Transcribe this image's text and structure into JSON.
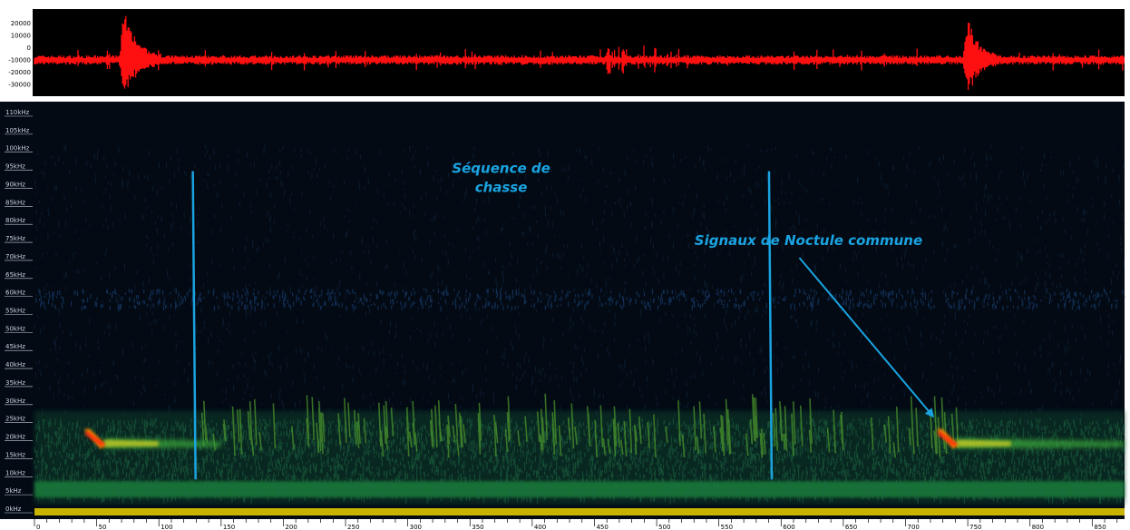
{
  "chart_data": [
    {
      "type": "line",
      "panel": "waveform",
      "yticks": [
        "20000",
        "10000",
        "0",
        "-10000",
        "-20000",
        "-30000"
      ],
      "ytick_values": [
        20000,
        10000,
        0,
        -10000,
        -20000,
        -30000
      ],
      "ylim": [
        -38000,
        30000
      ],
      "baseline": -10000,
      "xlim": [
        0,
        876
      ],
      "bursts": [
        {
          "x": 72,
          "amp_max": 28000,
          "amp_min": -36000,
          "decay": 30
        },
        {
          "x": 750,
          "amp_max": 22000,
          "amp_min": -36000,
          "decay": 25
        }
      ],
      "colors": {
        "signal": "#ff1010",
        "background": "#000000"
      }
    },
    {
      "type": "heatmap",
      "panel": "spectrogram",
      "yticks": [
        "110kHz",
        "105kHz",
        "100kHz",
        "95kHz",
        "90kHz",
        "85kHz",
        "80kHz",
        "75kHz",
        "70kHz",
        "65kHz",
        "60kHz",
        "55kHz",
        "50kHz",
        "45kHz",
        "40kHz",
        "35kHz",
        "30kHz",
        "25kHz",
        "20kHz",
        "15kHz",
        "10kHz",
        "5kHz",
        "0kHz"
      ],
      "ytick_values": [
        110,
        105,
        100,
        95,
        90,
        85,
        80,
        75,
        70,
        65,
        60,
        55,
        50,
        45,
        40,
        35,
        30,
        25,
        20,
        15,
        10,
        5,
        0
      ],
      "ylim": [
        0,
        112
      ],
      "xlim": [
        0,
        876
      ],
      "xticks": [
        "0",
        "50",
        "100",
        "150",
        "200",
        "250",
        "300",
        "350",
        "400",
        "450",
        "500",
        "550",
        "600",
        "650",
        "700",
        "750",
        "800",
        "850"
      ],
      "xtick_values": [
        0,
        50,
        100,
        150,
        200,
        250,
        300,
        350,
        400,
        450,
        500,
        550,
        600,
        650,
        700,
        750,
        800,
        850
      ],
      "band_khz": [
        8,
        18,
        21
      ],
      "calls": [
        {
          "x": 42,
          "f_start": 23,
          "f_end": 19,
          "tail_end": 150
        },
        {
          "x": 727,
          "f_start": 23,
          "f_end": 19,
          "tail_end": 876
        }
      ],
      "markers": [
        {
          "x": 128
        },
        {
          "x": 591
        }
      ],
      "annotations": [
        {
          "lines": [
            "Séquence de",
            "chasse"
          ],
          "x": 375,
          "khz": 94
        },
        {
          "lines": [
            "Signaux de Noctule commune"
          ],
          "x": 622,
          "khz": 74,
          "arrow_to_x": 725,
          "arrow_to_khz": 25
        }
      ],
      "colors": {
        "background": "#030a14",
        "marker": "#1aa3e0",
        "annotation": "#1aa3e0",
        "floor": "#c8b400"
      }
    }
  ]
}
